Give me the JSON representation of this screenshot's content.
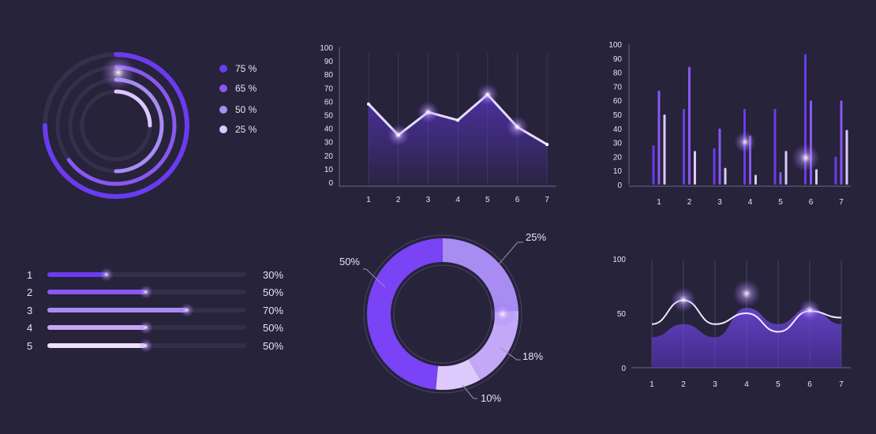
{
  "colors": {
    "background": "#26233a",
    "deep_violet": "#6a3bf0",
    "violet": "#8a57f0",
    "lavender": "#a88cf2",
    "pale_lavender": "#ddc9fb",
    "axis": "#6f6a8a",
    "text": "#e8e4f4"
  },
  "chart_data": [
    {
      "id": "radial_progress",
      "type": "radial_bar",
      "series": [
        {
          "label": "75 %",
          "value": 75,
          "color": "#6a3bf0"
        },
        {
          "label": "65 %",
          "value": 65,
          "color": "#8a57f0"
        },
        {
          "label": "50 %",
          "value": 50,
          "color": "#a88cf2"
        },
        {
          "label": "25 %",
          "value": 25,
          "color": "#ddc9fb"
        }
      ],
      "legend": "right"
    },
    {
      "id": "line_area",
      "type": "line",
      "x": [
        "1",
        "2",
        "3",
        "4",
        "5",
        "6",
        "7"
      ],
      "values": [
        58,
        35,
        52,
        46,
        65,
        41,
        28
      ],
      "yticks": [
        "0",
        "10",
        "20",
        "30",
        "40",
        "50",
        "60",
        "70",
        "80",
        "90",
        "100"
      ],
      "ylim": [
        0,
        100
      ],
      "grid": "vertical"
    },
    {
      "id": "grouped_bars",
      "type": "bar",
      "categories": [
        "1",
        "2",
        "3",
        "4",
        "5",
        "6",
        "7"
      ],
      "series": [
        {
          "values": [
            28,
            54,
            26,
            54,
            54,
            93,
            20
          ],
          "color": "#6a3bf0"
        },
        {
          "values": [
            67,
            84,
            40,
            35,
            9,
            60,
            60
          ],
          "color": "#8a57f0"
        },
        {
          "values": [
            50,
            24,
            12,
            7,
            24,
            11,
            39
          ],
          "color": "#ddc9fb"
        }
      ],
      "yticks": [
        "0",
        "10",
        "20",
        "30",
        "40",
        "50",
        "60",
        "70",
        "80",
        "90",
        "100"
      ],
      "ylim": [
        0,
        100
      ]
    },
    {
      "id": "progress_bars",
      "type": "bar",
      "categories": [
        "1",
        "2",
        "3",
        "4",
        "5"
      ],
      "values": [
        30,
        50,
        70,
        50,
        50
      ],
      "value_labels": [
        "30%",
        "50%",
        "70%",
        "50%",
        "50%"
      ],
      "colors": [
        "#6a3bf0",
        "#8a57f0",
        "#a88cf2",
        "#c8a8f5",
        "#ece0fd"
      ],
      "orientation": "horizontal"
    },
    {
      "id": "donut",
      "type": "pie",
      "slices": [
        {
          "label": "25%",
          "value": 25,
          "color": "#a88cf2"
        },
        {
          "label": "18%",
          "value": 18,
          "color": "#c2a8f7"
        },
        {
          "label": "10%",
          "value": 10,
          "color": "#ddc9fb"
        },
        {
          "label": "50%",
          "value": 50,
          "color": "#7a43f5"
        }
      ],
      "hole": true
    },
    {
      "id": "wave_area",
      "type": "area",
      "x": [
        "1",
        "2",
        "3",
        "4",
        "5",
        "6",
        "7"
      ],
      "series": [
        {
          "values": [
            28,
            40,
            28,
            55,
            40,
            55,
            40
          ],
          "color": "#6a3bf0",
          "style": "area"
        },
        {
          "values": [
            40,
            62,
            40,
            50,
            33,
            52,
            46
          ],
          "color": "#f0eaff",
          "style": "line"
        }
      ],
      "yticks": [
        "0",
        "50",
        "100"
      ],
      "ylim": [
        0,
        100
      ],
      "grid": "vertical"
    }
  ]
}
